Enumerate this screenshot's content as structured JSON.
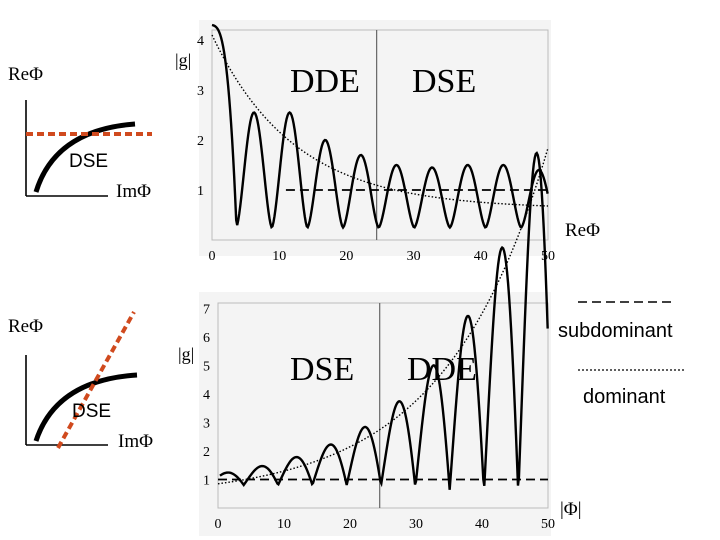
{
  "left_diagrams": {
    "top": {
      "re_label": "ReΦ",
      "region_label": "DSE",
      "im_label": "ImΦ"
    },
    "bottom": {
      "re_label": "ReΦ",
      "region_label": "DSE",
      "im_label": "ImΦ"
    }
  },
  "legend": {
    "subdominant_label": "subdominant",
    "dominant_label": "dominant"
  },
  "colors": {
    "axis_dashes": "#d04a1e",
    "plot_background": "#f4f4f4"
  },
  "chart_data": [
    {
      "type": "line",
      "title": "",
      "ylabel": "|g|",
      "xlabel": "ReΦ",
      "xlim": [
        0,
        50
      ],
      "ylim": [
        0,
        4.2
      ],
      "xticks": [
        "0",
        "10",
        "20",
        "30",
        "40",
        "50"
      ],
      "yticks": [
        "1",
        "2",
        "3",
        "4"
      ],
      "region_left": "DDE",
      "region_right": "DSE",
      "divider_x": 24.5,
      "series": [
        {
          "name": "subdominant",
          "style": "dashed",
          "level": 1
        },
        {
          "name": "dominant",
          "style": "dotted",
          "from": 4.1,
          "decay": 0.065
        },
        {
          "name": "|g|",
          "style": "solid",
          "peaks": [
            2.55,
            2.55,
            2.0,
            1.7,
            1.5,
            1.45,
            1.5,
            1.5,
            1.4
          ],
          "trough_base": 0.25,
          "period": 5.3,
          "start_value": 4.3
        }
      ]
    },
    {
      "type": "line",
      "title": "",
      "ylabel": "|g|",
      "xlabel": "|Φ|",
      "xlim": [
        0,
        50
      ],
      "ylim": [
        0,
        7.2
      ],
      "xticks": [
        "0",
        "10",
        "20",
        "30",
        "40",
        "50"
      ],
      "yticks": [
        "1",
        "2",
        "3",
        "4",
        "5",
        "6",
        "7"
      ],
      "region_left": "DSE",
      "region_right": "DDE",
      "divider_x": 24.5,
      "series": [
        {
          "name": "subdominant",
          "style": "dashed",
          "level": 1
        },
        {
          "name": "dominant",
          "style": "dotted",
          "from": 0.5,
          "growth": 0.061
        },
        {
          "name": "|g|",
          "style": "solid",
          "period": 5.2
        }
      ]
    }
  ]
}
